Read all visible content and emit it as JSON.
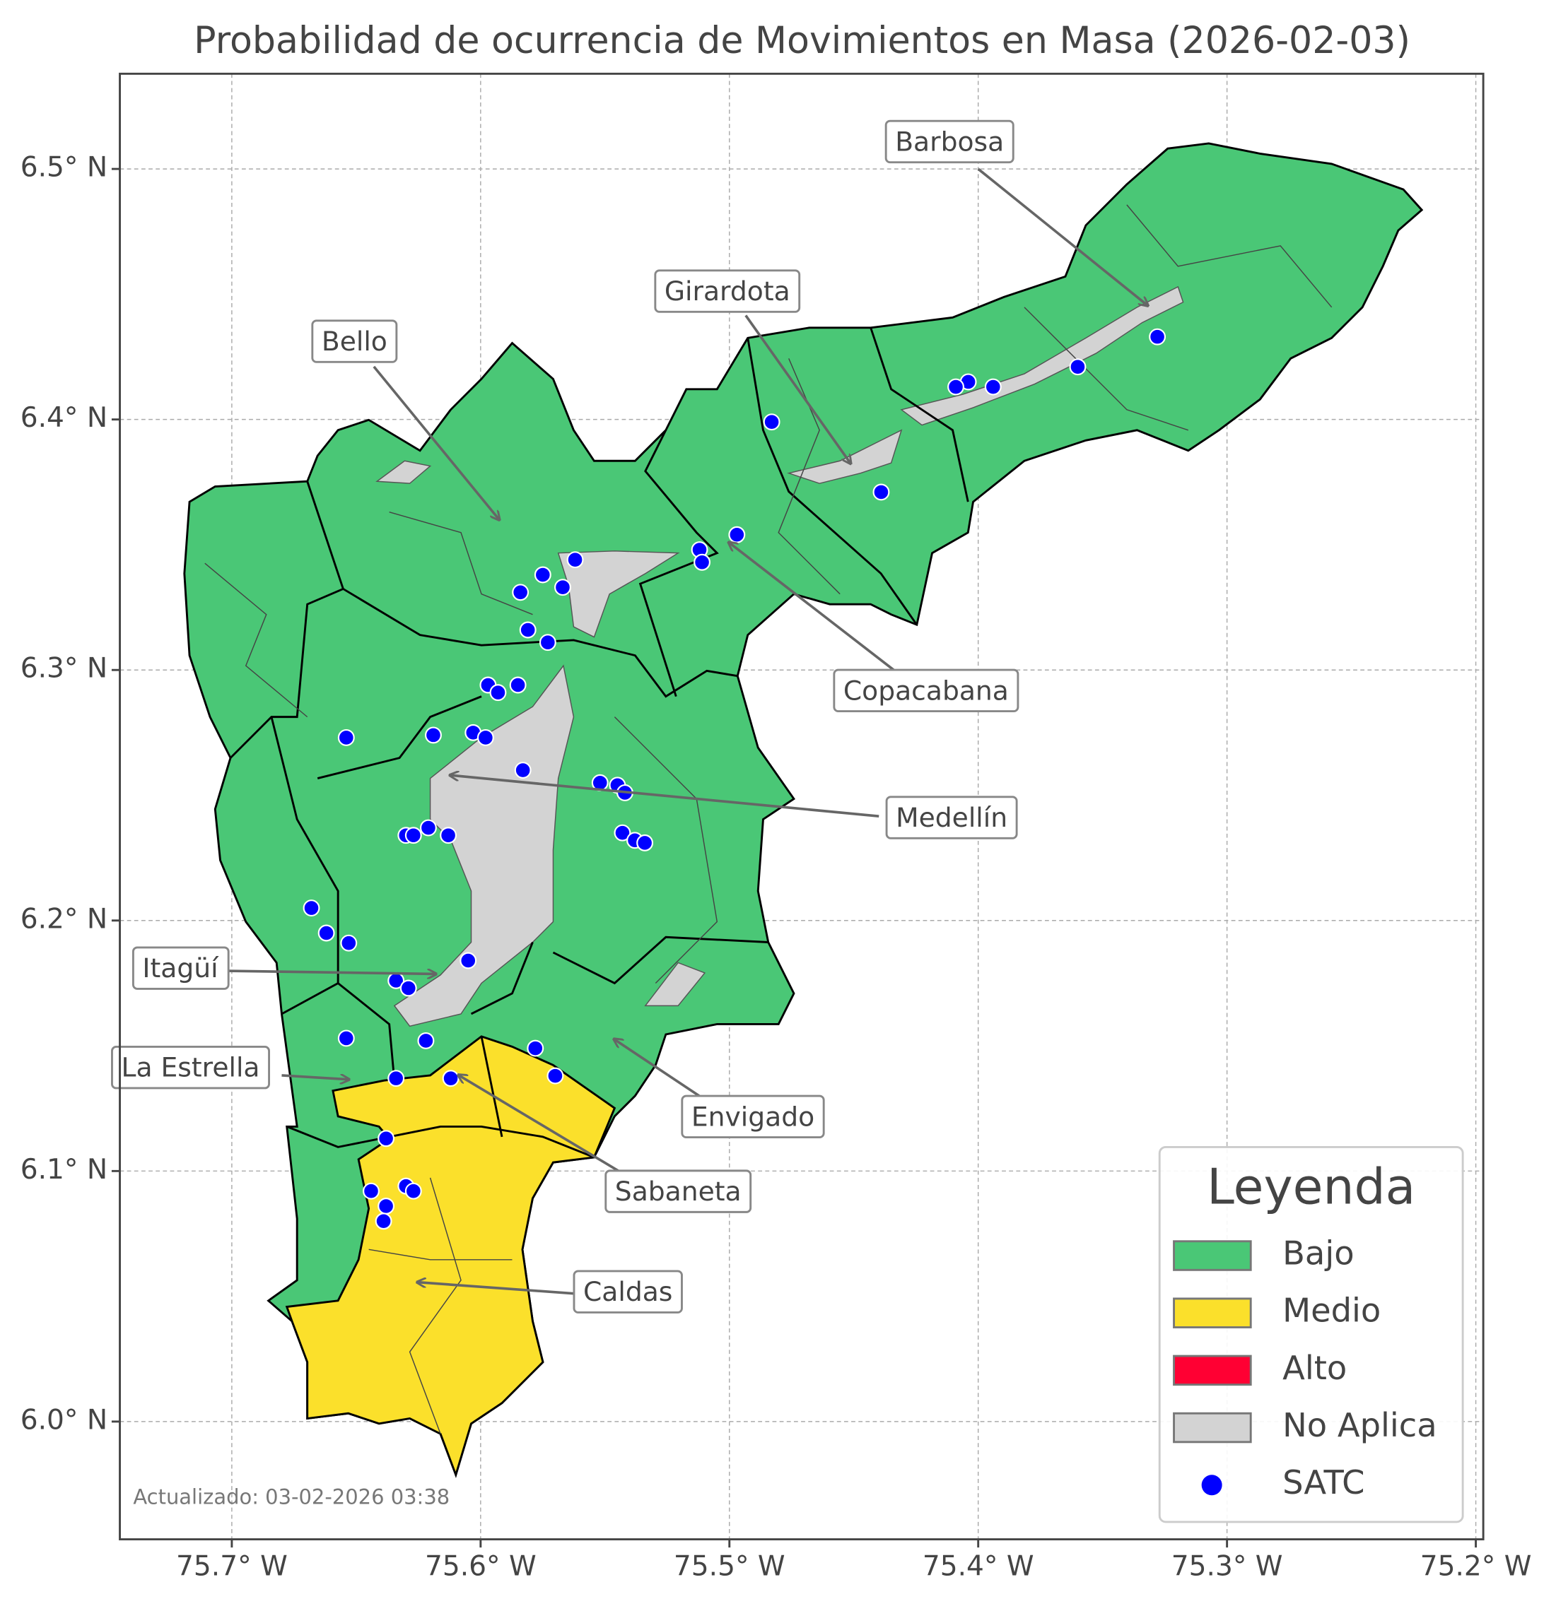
{
  "title": "Probabilidad de ocurrencia de Movimientos en Masa (2026-02-03)",
  "footnote": "Actualizado: 03-02-2026 03:38",
  "map": {
    "xlim": [
      -75.745,
      -75.197
    ],
    "ylim": [
      5.953,
      6.538
    ],
    "grid": true,
    "xticks": [
      {
        "value": -75.7,
        "label": "75.7° W"
      },
      {
        "value": -75.6,
        "label": "75.6° W"
      },
      {
        "value": -75.5,
        "label": "75.5° W"
      },
      {
        "value": -75.4,
        "label": "75.4° W"
      },
      {
        "value": -75.3,
        "label": "75.3° W"
      },
      {
        "value": -75.2,
        "label": "75.2° W"
      }
    ],
    "yticks": [
      {
        "value": 6.0,
        "label": "6.0° N"
      },
      {
        "value": 6.1,
        "label": "6.1° N"
      },
      {
        "value": 6.2,
        "label": "6.2° N"
      },
      {
        "value": 6.3,
        "label": "6.3° N"
      },
      {
        "value": 6.4,
        "label": "6.4° N"
      },
      {
        "value": 6.5,
        "label": "6.5° N"
      }
    ]
  },
  "legend": {
    "title": "Leyenda",
    "corner": "lower right",
    "items": [
      {
        "label": "Bajo",
        "color": "#4ac776",
        "marker": "patch"
      },
      {
        "label": "Medio",
        "color": "#fbe02b",
        "marker": "patch"
      },
      {
        "label": "Alto",
        "color": "#ff0033",
        "marker": "patch"
      },
      {
        "label": "No Aplica",
        "color": "#d3d3d3",
        "marker": "patch"
      },
      {
        "label": "SATC",
        "color": "#0000ff",
        "marker": "circle"
      }
    ]
  },
  "satc": {
    "points": [
      {
        "lon": -75.328,
        "lat": 6.433
      },
      {
        "lon": -75.36,
        "lat": 6.421
      },
      {
        "lon": -75.394,
        "lat": 6.413
      },
      {
        "lon": -75.404,
        "lat": 6.415
      },
      {
        "lon": -75.409,
        "lat": 6.413
      },
      {
        "lon": -75.483,
        "lat": 6.399
      },
      {
        "lon": -75.439,
        "lat": 6.371
      },
      {
        "lon": -75.497,
        "lat": 6.354
      },
      {
        "lon": -75.512,
        "lat": 6.348
      },
      {
        "lon": -75.511,
        "lat": 6.343
      },
      {
        "lon": -75.562,
        "lat": 6.344
      },
      {
        "lon": -75.567,
        "lat": 6.333
      },
      {
        "lon": -75.575,
        "lat": 6.338
      },
      {
        "lon": -75.584,
        "lat": 6.331
      },
      {
        "lon": -75.581,
        "lat": 6.316
      },
      {
        "lon": -75.573,
        "lat": 6.311
      },
      {
        "lon": -75.597,
        "lat": 6.294
      },
      {
        "lon": -75.585,
        "lat": 6.294
      },
      {
        "lon": -75.593,
        "lat": 6.291
      },
      {
        "lon": -75.654,
        "lat": 6.273
      },
      {
        "lon": -75.619,
        "lat": 6.274
      },
      {
        "lon": -75.603,
        "lat": 6.275
      },
      {
        "lon": -75.598,
        "lat": 6.273
      },
      {
        "lon": -75.583,
        "lat": 6.26
      },
      {
        "lon": -75.552,
        "lat": 6.255
      },
      {
        "lon": -75.545,
        "lat": 6.254
      },
      {
        "lon": -75.542,
        "lat": 6.251
      },
      {
        "lon": -75.543,
        "lat": 6.235
      },
      {
        "lon": -75.538,
        "lat": 6.232
      },
      {
        "lon": -75.534,
        "lat": 6.231
      },
      {
        "lon": -75.621,
        "lat": 6.237
      },
      {
        "lon": -75.63,
        "lat": 6.234
      },
      {
        "lon": -75.627,
        "lat": 6.234
      },
      {
        "lon": -75.613,
        "lat": 6.234
      },
      {
        "lon": -75.668,
        "lat": 6.205
      },
      {
        "lon": -75.662,
        "lat": 6.195
      },
      {
        "lon": -75.653,
        "lat": 6.191
      },
      {
        "lon": -75.605,
        "lat": 6.184
      },
      {
        "lon": -75.634,
        "lat": 6.176
      },
      {
        "lon": -75.629,
        "lat": 6.173
      },
      {
        "lon": -75.654,
        "lat": 6.153
      },
      {
        "lon": -75.622,
        "lat": 6.152
      },
      {
        "lon": -75.578,
        "lat": 6.149
      },
      {
        "lon": -75.57,
        "lat": 6.138
      },
      {
        "lon": -75.634,
        "lat": 6.137
      },
      {
        "lon": -75.612,
        "lat": 6.137
      },
      {
        "lon": -75.638,
        "lat": 6.113
      },
      {
        "lon": -75.644,
        "lat": 6.092
      },
      {
        "lon": -75.63,
        "lat": 6.094
      },
      {
        "lon": -75.627,
        "lat": 6.092
      },
      {
        "lon": -75.638,
        "lat": 6.086
      },
      {
        "lon": -75.639,
        "lat": 6.08
      }
    ]
  },
  "annotations": [
    "Barbosa",
    "Girardota",
    "Bello",
    "Copacabana",
    "Medellín",
    "Itagüí",
    "La Estrella",
    "Envigado",
    "Sabaneta",
    "Caldas"
  ]
}
